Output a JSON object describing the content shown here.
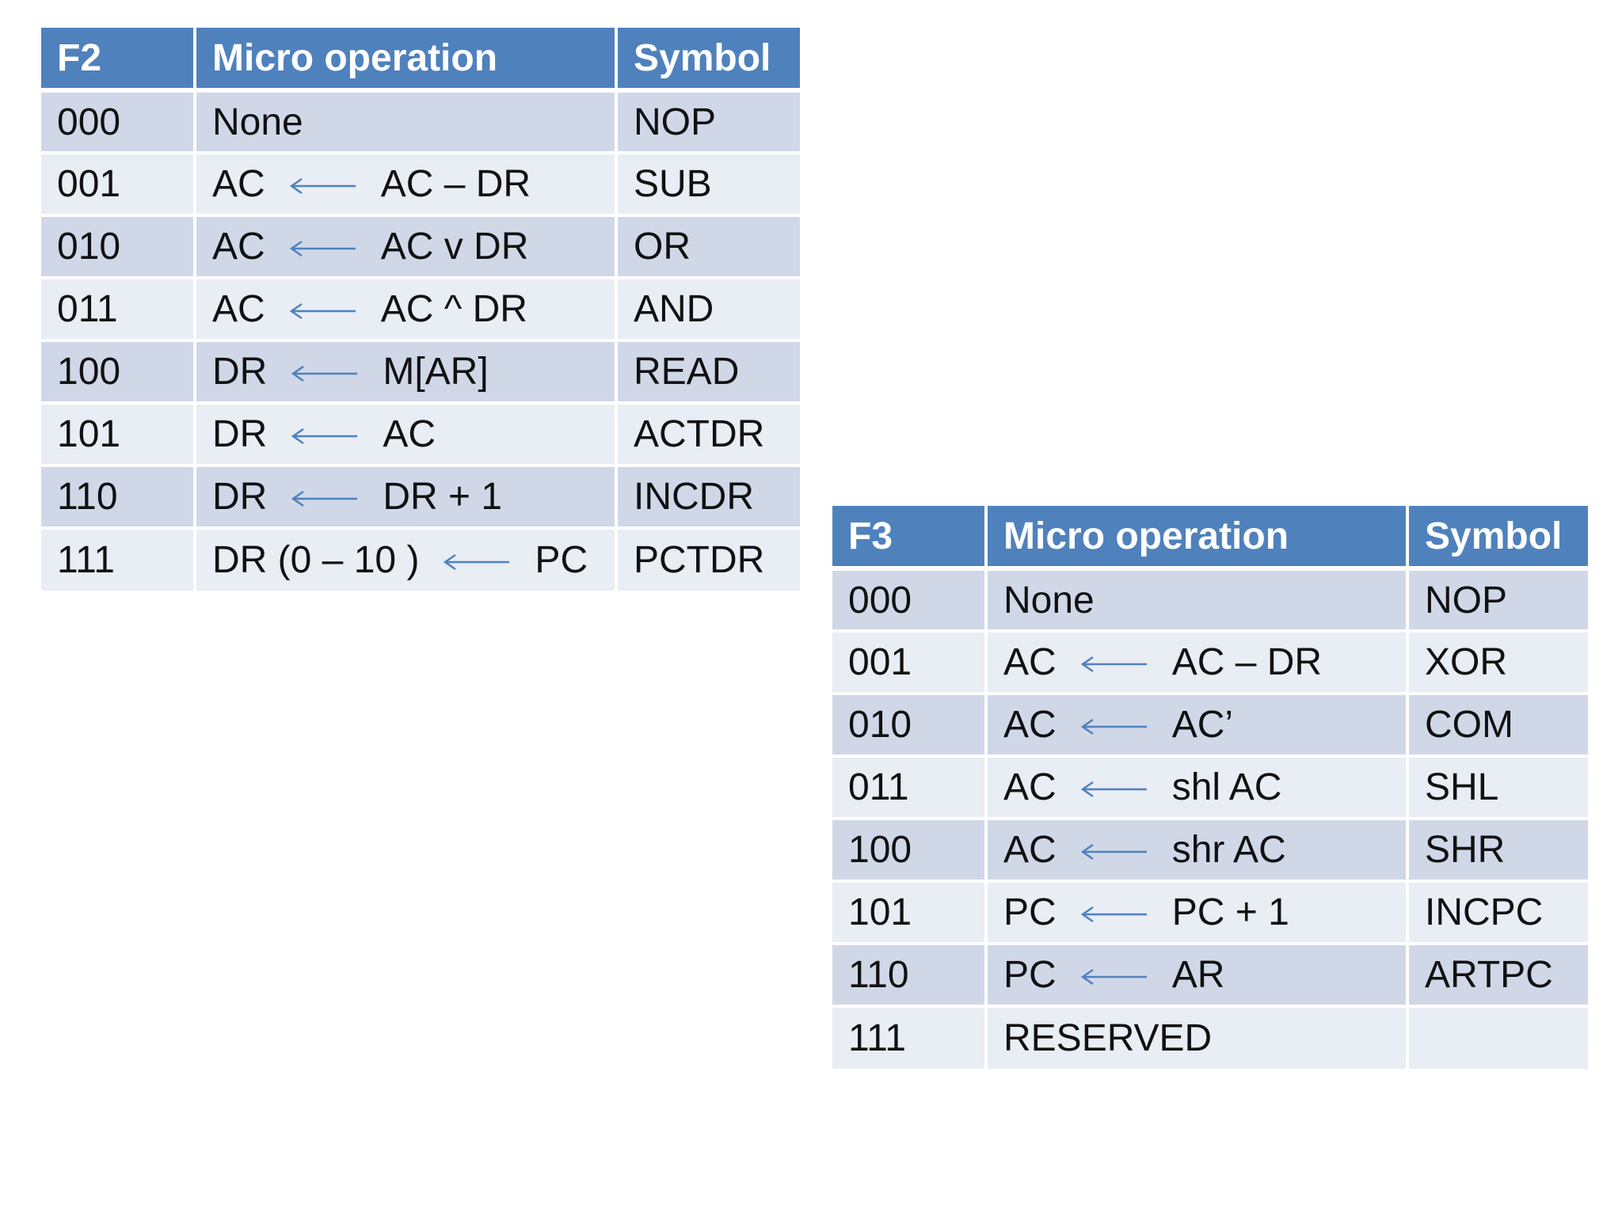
{
  "table_f2": {
    "headers": [
      "F2",
      "Micro operation",
      "Symbol"
    ],
    "rows": [
      {
        "code": "000",
        "op_full": "None",
        "symbol": "NOP"
      },
      {
        "code": "001",
        "lhs": "AC",
        "rhs": "AC – DR",
        "symbol": "SUB"
      },
      {
        "code": "010",
        "lhs": "AC",
        "rhs": "AC  v  DR",
        "symbol": "OR"
      },
      {
        "code": "011",
        "lhs": "AC",
        "rhs": "AC ^ DR",
        "symbol": "AND"
      },
      {
        "code": "100",
        "lhs": "DR",
        "rhs": "M[AR]",
        "symbol": "READ"
      },
      {
        "code": "101",
        "lhs": "DR",
        "rhs": "AC",
        "symbol": "ACTDR"
      },
      {
        "code": "110",
        "lhs": "DR",
        "rhs": "DR + 1",
        "symbol": "INCDR"
      },
      {
        "code": "111",
        "lhs": "DR (0 – 10 )",
        "rhs": "PC",
        "symbol": "PCTDR"
      }
    ]
  },
  "table_f3": {
    "headers": [
      "F3",
      "Micro operation",
      "Symbol"
    ],
    "rows": [
      {
        "code": "000",
        "op_full": "None",
        "symbol": "NOP"
      },
      {
        "code": "001",
        "lhs": "AC",
        "rhs": "AC – DR",
        "symbol": "XOR"
      },
      {
        "code": "010",
        "lhs": "AC",
        "rhs": "AC’",
        "symbol": "COM"
      },
      {
        "code": "011",
        "lhs": "AC",
        "rhs": "shl AC",
        "symbol": "SHL"
      },
      {
        "code": "100",
        "lhs": "AC",
        "rhs": "shr AC",
        "symbol": "SHR"
      },
      {
        "code": "101",
        "lhs": "PC",
        "rhs": "PC + 1",
        "symbol": "INCPC"
      },
      {
        "code": "110",
        "lhs": "PC",
        "rhs": "AR",
        "symbol": "ARTPC"
      },
      {
        "code": "111",
        "op_full": "RESERVED",
        "symbol": ""
      }
    ]
  },
  "colors": {
    "header_bg": "#4f81bd",
    "row_dark": "#d0d8e8",
    "row_light": "#e9edf4",
    "arrow": "#4f81bd"
  },
  "icons": {
    "arrow": "left-arrow-icon"
  }
}
